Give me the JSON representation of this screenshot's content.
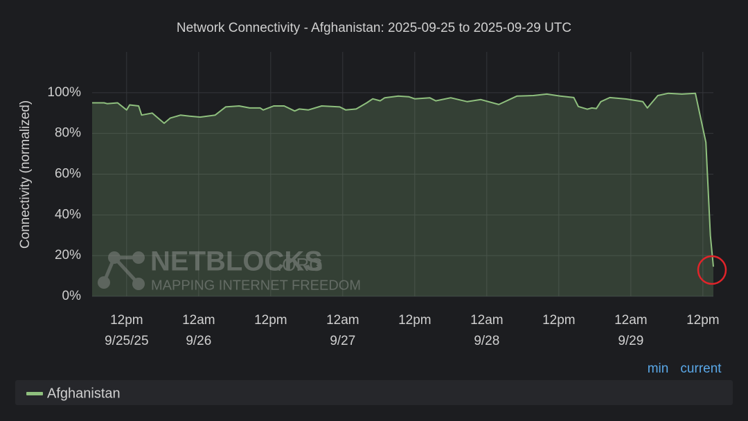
{
  "chart_data": {
    "type": "line",
    "title": "Network Connectivity - Afghanistan: 2025-09-25 to 2025-09-29 UTC",
    "y_label": "Connectivity (normalized)",
    "watermark": {
      "name": "NETBLOCKS",
      "suffix": ".ORG",
      "tagline": "MAPPING INTERNET FREEDOM"
    },
    "legend_columns": [
      "min",
      "current"
    ],
    "x": [
      "2025-09-25 06:15",
      "2025-09-25 08:15",
      "2025-09-25 08:45",
      "2025-09-25 10:30",
      "2025-09-25 12:00",
      "2025-09-25 12:30",
      "2025-09-25 14:00",
      "2025-09-25 14:30",
      "2025-09-25 16:15",
      "2025-09-25 18:15",
      "2025-09-25 19:15",
      "2025-09-25 21:00",
      "2025-09-25 22:30",
      "2025-09-26 00:15",
      "2025-09-26 02:45",
      "2025-09-26 04:30",
      "2025-09-26 06:45",
      "2025-09-26 08:30",
      "2025-09-26 10:15",
      "2025-09-26 10:45",
      "2025-09-26 12:30",
      "2025-09-26 14:15",
      "2025-09-26 16:00",
      "2025-09-26 16:45",
      "2025-09-26 18:15",
      "2025-09-26 20:30",
      "2025-09-26 23:30",
      "2025-09-27 00:30",
      "2025-09-27 02:15",
      "2025-09-27 04:00",
      "2025-09-27 05:00",
      "2025-09-27 06:15",
      "2025-09-27 07:00",
      "2025-09-27 09:15",
      "2025-09-27 11:00",
      "2025-09-27 12:00",
      "2025-09-27 14:30",
      "2025-09-27 15:30",
      "2025-09-27 18:00",
      "2025-09-27 20:45",
      "2025-09-27 23:00",
      "2025-09-28 02:00",
      "2025-09-28 05:00",
      "2025-09-28 07:45",
      "2025-09-28 10:00",
      "2025-09-28 12:15",
      "2025-09-28 14:30",
      "2025-09-28 15:15",
      "2025-09-28 16:45",
      "2025-09-28 17:30",
      "2025-09-28 18:15",
      "2025-09-28 19:00",
      "2025-09-28 20:30",
      "2025-09-28 23:15",
      "2025-09-29 02:00",
      "2025-09-29 02:45",
      "2025-09-29 04:30",
      "2025-09-29 06:15",
      "2025-09-29 08:30",
      "2025-09-29 10:45",
      "2025-09-29 12:30",
      "2025-09-29 13:15",
      "2025-09-29 13:45"
    ],
    "series": [
      {
        "name": "Afghanistan",
        "color": "#8fc07e",
        "values": [
          95,
          95,
          94.6,
          95,
          91.5,
          94,
          93.5,
          89,
          90,
          85,
          87.5,
          89,
          88.5,
          88,
          89,
          93,
          93.5,
          92.5,
          92.5,
          91.5,
          93.5,
          93.5,
          91,
          92,
          91.5,
          93.5,
          93,
          91.5,
          92,
          95,
          97,
          96,
          97.5,
          98.3,
          98,
          97,
          97.5,
          96,
          97.5,
          95.6,
          96.6,
          94.2,
          98.3,
          98.6,
          99.3,
          98.3,
          97.6,
          93.2,
          91.9,
          92.5,
          92.2,
          95.6,
          97.6,
          96.9,
          95.6,
          92.5,
          98.6,
          99.7,
          99.3,
          99.7,
          75.6,
          29.8,
          14.6
        ]
      }
    ],
    "xlim": [
      "2025-09-25 06:15",
      "2025-09-29 13:45"
    ],
    "xticks": [
      {
        "value": "2025-09-25 12:00",
        "label": "12pm",
        "date": "9/25/25"
      },
      {
        "value": "2025-09-26 00:00",
        "label": "12am",
        "date": "9/26"
      },
      {
        "value": "2025-09-26 12:00",
        "label": "12pm"
      },
      {
        "value": "2025-09-27 00:00",
        "label": "12am",
        "date": "9/27"
      },
      {
        "value": "2025-09-27 12:00",
        "label": "12pm"
      },
      {
        "value": "2025-09-28 00:00",
        "label": "12am",
        "date": "9/28"
      },
      {
        "value": "2025-09-28 12:00",
        "label": "12pm"
      },
      {
        "value": "2025-09-29 00:00",
        "label": "12am",
        "date": "9/29"
      },
      {
        "value": "2025-09-29 12:00",
        "label": "12pm"
      }
    ],
    "ylim": [
      0,
      120
    ],
    "yticks": [
      {
        "value": 0,
        "label": "0%"
      },
      {
        "value": 20,
        "label": "20%"
      },
      {
        "value": 40,
        "label": "40%"
      },
      {
        "value": 60,
        "label": "60%"
      },
      {
        "value": 80,
        "label": "80%"
      },
      {
        "value": 100,
        "label": "100%"
      }
    ],
    "grid": true
  }
}
